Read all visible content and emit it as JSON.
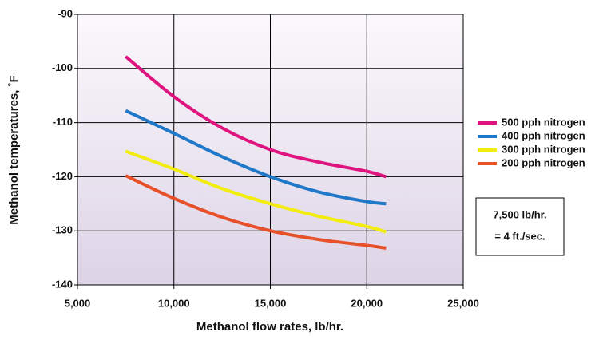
{
  "chart_data": {
    "type": "line",
    "x_label": "Methanol flow rates, lb/hr.",
    "y_label": "Methanol temperatures, ˚F",
    "x": [
      7500,
      10000,
      12500,
      15000,
      17500,
      20000,
      21000
    ],
    "series": [
      {
        "name": "500 pph nitrogen",
        "color": "#e0147f",
        "values": [
          -97.8,
          -105.2,
          -111,
          -115,
          -117.3,
          -119,
          -120
        ]
      },
      {
        "name": "400 pph nitrogen",
        "color": "#1f78c8",
        "values": [
          -107.8,
          -112,
          -116.3,
          -120,
          -122.8,
          -124.6,
          -125
        ]
      },
      {
        "name": "300 pph nitrogen",
        "color": "#f2ec10",
        "values": [
          -115.3,
          -118.6,
          -122.2,
          -125,
          -127.3,
          -129.2,
          -130.2
        ]
      },
      {
        "name": "200 pph nitrogen",
        "color": "#e8502a",
        "values": [
          -119.8,
          -124,
          -127.5,
          -130,
          -131.6,
          -132.7,
          -133.2
        ]
      }
    ],
    "xlim": [
      5000,
      25000
    ],
    "xticks": [
      {
        "value": 5000,
        "label": "5,000"
      },
      {
        "value": 10000,
        "label": "10,000"
      },
      {
        "value": 15000,
        "label": "15,000"
      },
      {
        "value": 20000,
        "label": "20,000"
      },
      {
        "value": 25000,
        "label": "25,000"
      }
    ],
    "ylim": [
      -140,
      -90
    ],
    "yticks": [
      -140,
      -130,
      -120,
      -110,
      -100,
      -90
    ],
    "grid": true,
    "legend": "right",
    "annotation": [
      "7,500 lb/hr.",
      "= 4 ft./sec."
    ]
  }
}
